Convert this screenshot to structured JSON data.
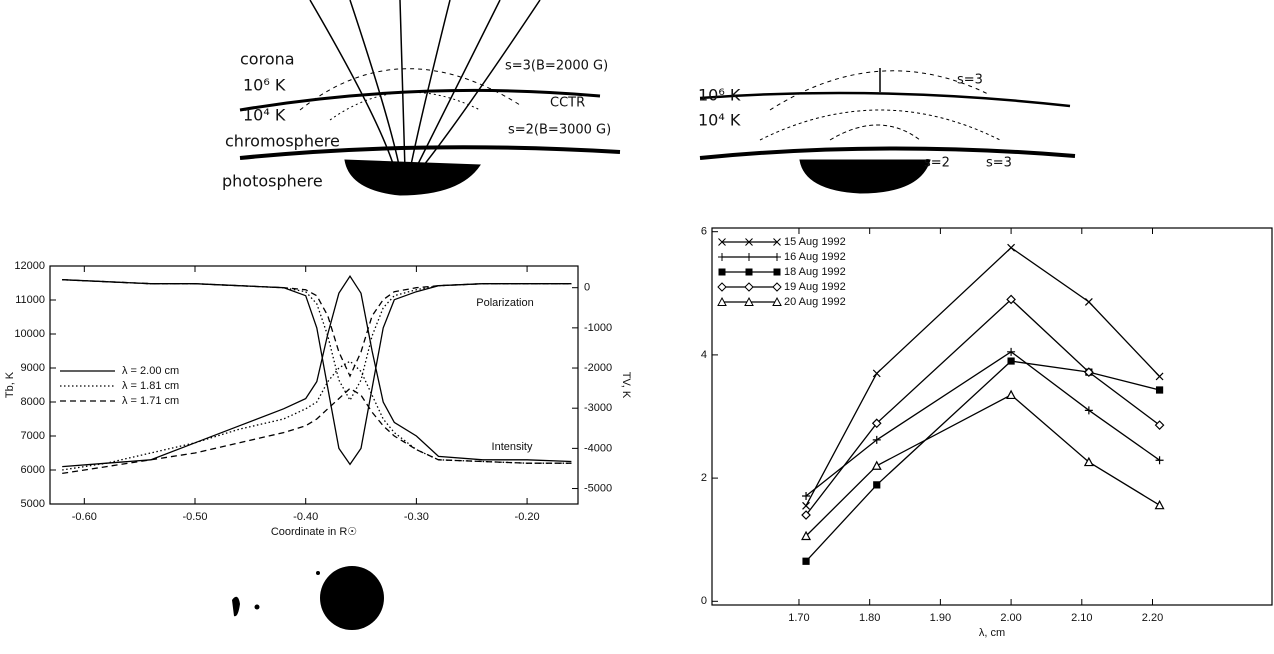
{
  "diagram_left": {
    "corona": "corona",
    "hot": "10⁶ K",
    "cool": "10⁴ K",
    "chromosphere": "chromosphere",
    "photosphere": "photosphere",
    "s3": "s=3(B=2000 G)",
    "cctr": "CCTR",
    "s2": "s=2(B=3000 G)"
  },
  "diagram_right": {
    "hot": "10⁶ K",
    "cool": "10⁴ K",
    "s3_top": "s=3",
    "s2": "s=2",
    "s3_low": "s=3"
  },
  "chart_data": [
    {
      "type": "line",
      "x_label": "Coordinate in R☉",
      "y_label": "Tb, K",
      "y2_label": "TV, K",
      "annotations": [
        "Polarization",
        "Intensity"
      ],
      "legend": "center left",
      "x": [
        -0.62,
        -0.58,
        -0.54,
        -0.5,
        -0.46,
        -0.42,
        -0.4,
        -0.39,
        -0.38,
        -0.37,
        -0.36,
        -0.35,
        -0.34,
        -0.33,
        -0.32,
        -0.3,
        -0.28,
        -0.24,
        -0.2,
        -0.16
      ],
      "xlim": [
        -0.631,
        -0.154
      ],
      "xticks": [
        {
          "value": -0.6,
          "label": "-0.60"
        },
        {
          "value": -0.5,
          "label": "-0.50"
        },
        {
          "value": -0.4,
          "label": "-0.40"
        },
        {
          "value": -0.3,
          "label": "-0.30"
        },
        {
          "value": -0.2,
          "label": "-0.20"
        }
      ],
      "ylim": [
        5000,
        12000
      ],
      "yticks": [
        5000,
        6000,
        7000,
        8000,
        9000,
        10000,
        11000,
        12000
      ],
      "y2lim": [
        -5385,
        540
      ],
      "y2ticks": [
        0,
        -1000,
        -2000,
        -3000,
        -4000,
        -5000
      ],
      "series": [
        {
          "name": "λ = 2.00 cm",
          "color": "#000000",
          "dash": "solid",
          "values": [
            6100,
            6200,
            6300,
            6800,
            7300,
            7800,
            8100,
            8600,
            10000,
            11200,
            11700,
            11200,
            9500,
            8000,
            7400,
            7000,
            6400,
            6300,
            6300,
            6250
          ]
        },
        {
          "name": "λ = 1.81 cm",
          "color": "#000000",
          "dash": "dotted",
          "values": [
            6000,
            6200,
            6500,
            6800,
            7200,
            7500,
            7800,
            8000,
            8600,
            9000,
            9200,
            8900,
            8200,
            7500,
            7100,
            6600,
            6300,
            6250,
            6200,
            6200
          ]
        },
        {
          "name": "λ = 1.71 cm",
          "color": "#000000",
          "dash": "dashed",
          "values": [
            5900,
            6100,
            6300,
            6500,
            6800,
            7100,
            7300,
            7500,
            7800,
            8100,
            8400,
            8200,
            7700,
            7300,
            7000,
            6600,
            6300,
            6250,
            6200,
            6200
          ]
        },
        {
          "color": "#000000",
          "dash": "solid",
          "axis": "y2",
          "values": [
            200,
            150,
            100,
            100,
            50,
            0,
            -200,
            -1000,
            -2500,
            -4000,
            -4400,
            -4000,
            -2500,
            -1000,
            -300,
            -100,
            50,
            100,
            100,
            100
          ]
        },
        {
          "color": "#000000",
          "dash": "dotted",
          "axis": "y2",
          "values": [
            200,
            150,
            100,
            100,
            50,
            0,
            -100,
            -400,
            -1200,
            -2300,
            -2800,
            -2300,
            -1200,
            -500,
            -200,
            -50,
            50,
            100,
            100,
            100
          ]
        },
        {
          "color": "#000000",
          "dash": "dashed",
          "axis": "y2",
          "values": [
            200,
            150,
            100,
            100,
            50,
            0,
            -50,
            -200,
            -700,
            -1600,
            -2200,
            -1600,
            -700,
            -300,
            -100,
            0,
            50,
            100,
            100,
            100
          ]
        }
      ]
    },
    {
      "type": "line",
      "x_label": "λ, cm",
      "legend": "upper left",
      "x": [
        1.71,
        1.81,
        2.0,
        2.11,
        2.21
      ],
      "xlim": [
        1.577,
        2.369
      ],
      "xticks": [
        {
          "value": 1.7,
          "label": "1.70"
        },
        {
          "value": 1.8,
          "label": "1.80"
        },
        {
          "value": 1.9,
          "label": "1.90"
        },
        {
          "value": 2.0,
          "label": "2.00"
        },
        {
          "value": 2.1,
          "label": "2.10"
        },
        {
          "value": 2.2,
          "label": "2.20"
        }
      ],
      "ylim": [
        -0.06,
        6.06
      ],
      "yticks": [
        0,
        2,
        4,
        6
      ],
      "series": [
        {
          "name": "15 Aug 1992",
          "color": "#000000",
          "dash": "solid",
          "marker": "x",
          "values": [
            1.55,
            3.7,
            5.74,
            4.86,
            3.65
          ]
        },
        {
          "name": "16 Aug 1992",
          "color": "#000000",
          "dash": "solid",
          "marker": "+",
          "values": [
            1.71,
            2.62,
            4.05,
            3.1,
            2.29
          ]
        },
        {
          "name": "18 Aug 1992",
          "color": "#000000",
          "dash": "solid",
          "marker": "square",
          "values": [
            0.65,
            1.89,
            3.9,
            3.72,
            3.43
          ]
        },
        {
          "name": "19 Aug 1992",
          "color": "#000000",
          "dash": "solid",
          "marker": "diamond",
          "values": [
            1.4,
            2.89,
            4.9,
            3.72,
            2.86
          ]
        },
        {
          "name": "20 Aug 1992",
          "color": "#000000",
          "dash": "solid",
          "marker": "triangle",
          "values": [
            1.06,
            2.2,
            3.35,
            2.26,
            1.56
          ]
        }
      ]
    }
  ]
}
